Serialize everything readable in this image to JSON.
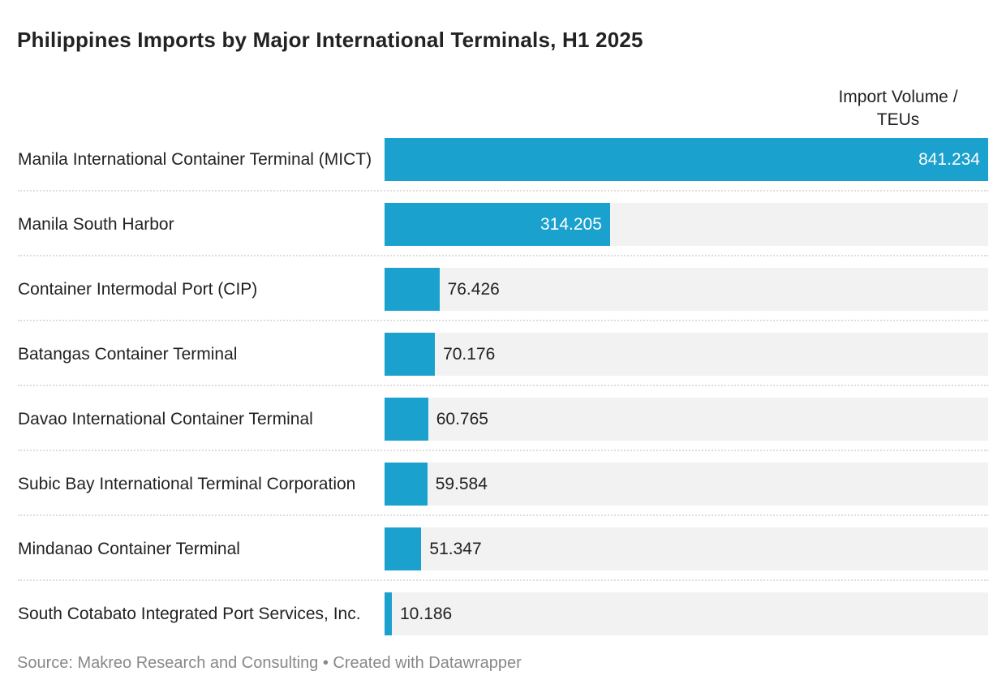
{
  "chart_data": {
    "type": "bar",
    "title": "Philippines Imports by Major International Terminals, H1 2025",
    "x_label": "Import Volume / TEUs",
    "categories": [
      "Manila International Container Terminal (MICT)",
      "Manila South Harbor",
      "Container Intermodal Port (CIP)",
      "Batangas Container Terminal",
      "Davao International Container Terminal",
      "Subic Bay International Terminal Corporation",
      "Mindanao Container Terminal",
      "South Cotabato Integrated Port Services, Inc."
    ],
    "values": [
      841.234,
      314.205,
      76.426,
      70.176,
      60.765,
      59.584,
      51.347,
      10.186
    ],
    "color": "#1ba1cd",
    "xlim": [
      0,
      841.234
    ],
    "source": "Source: Makreo Research and Consulting • Created with Datawrapper"
  }
}
